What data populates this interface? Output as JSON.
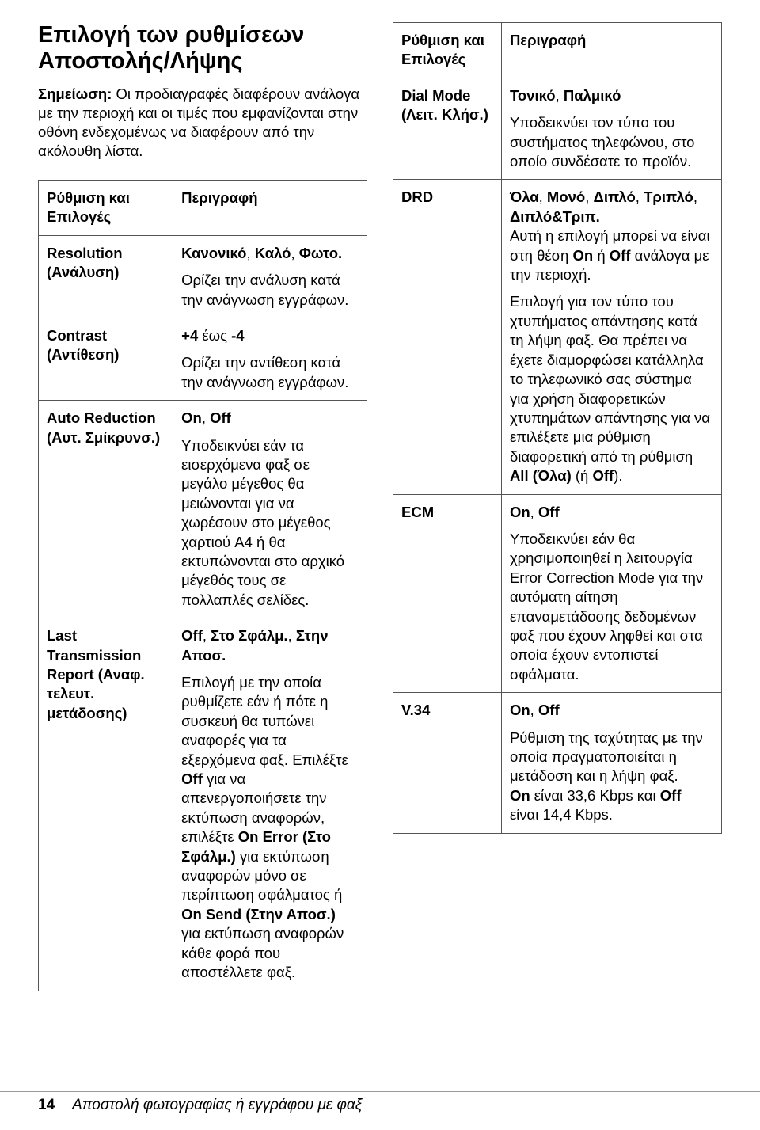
{
  "header": {
    "title": "Επιλογή των ρυθμίσεων Αποστολής/Λήψης",
    "note_label": "Σημείωση:",
    "note_text": "Οι προδιαγραφές διαφέρουν ανάλογα με την περιοχή και οι τιμές που εμφανίζονται στην οθόνη ενδεχομένως να διαφέρουν από την ακόλουθη λίστα."
  },
  "left_table": {
    "col1": "Ρύθμιση και Επιλογές",
    "col2": "Περιγραφή",
    "rows": [
      {
        "name": "Resolution (Ανάλυση)",
        "desc_html": "<span class='opts'>Κανονικό</span>, <span class='opts'>Καλό</span>, <span class='opts'>Φωτο.</span><span class='desc'>Ορίζει την ανάλυση κατά την ανάγνωση εγγράφων.</span>"
      },
      {
        "name": "Contrast (Αντίθεση)",
        "desc_html": "<span class='opts'>+4</span> έως <span class='opts'>-4</span><span class='desc'>Ορίζει την αντίθεση κατά την ανάγνωση εγγράφων.</span>"
      },
      {
        "name": "Auto Reduction (Αυτ. Σμίκρυνσ.)",
        "desc_html": "<span class='opts'>On</span>, <span class='opts'>Off</span><span class='desc'>Υποδεικνύει εάν τα εισερχόμενα φαξ σε μεγάλο μέγεθος θα μειώνονται για να χωρέσουν στο μέγεθος χαρτιού A4 ή θα εκτυπώνονται στο αρχικό μέγεθός τους σε πολλαπλές σελίδες.</span>"
      },
      {
        "name": "Last Transmission Report (Αναφ. τελευτ. μετάδοσης)",
        "desc_html": "<span class='opts'>Off</span>, <span class='opts'>Στο Σφάλμ.</span>, <span class='opts'>Στην Αποσ.</span><span class='desc'>Επιλογή με την οποία ρυθμίζετε εάν ή πότε η συσκευή θα τυπώνει αναφορές για τα εξερχόμενα φαξ. Επιλέξτε <b>Off</b> για να απενεργοποιήσετε την εκτύπωση αναφορών, επιλέξτε <b>On Error (Στο Σφάλμ.)</b> για εκτύπωση αναφορών μόνο σε περίπτωση σφάλματος ή <b>On Send (Στην Αποσ.)</b> για εκτύπωση αναφορών κάθε φορά που αποστέλλετε φαξ.</span>"
      }
    ]
  },
  "right_table": {
    "col1": "Ρύθμιση και Επιλογές",
    "col2": "Περιγραφή",
    "rows": [
      {
        "name": "Dial Mode (Λειτ. Κλήσ.)",
        "desc_html": "<span class='opts'>Τονικό</span>, <span class='opts'>Παλμικό</span><span class='desc'>Υποδεικνύει τον τύπο του συστήματος τηλεφώνου, στο οποίο συνδέσατε το προϊόν.</span>"
      },
      {
        "name": "DRD",
        "desc_html": "<span class='opts'>Όλα</span>, <span class='opts'>Μονό</span>, <span class='opts'>Διπλό</span>, <span class='opts'>Τριπλό</span>, <span class='opts'>Διπλό&Τριπ.</span><br>Αυτή η επιλογή μπορεί να είναι στη θέση <b>On</b> ή <b>Off</b> ανάλογα με την περιοχή.<span class='desc'>Επιλογή για τον τύπο του χτυπήματος απάντησης κατά τη λήψη φαξ. Θα πρέπει να έχετε διαμορφώσει κατάλληλα το τηλεφωνικό σας σύστημα για χρήση διαφορετικών χτυπημάτων απάντησης για να επιλέξετε μια ρύθμιση διαφορετική από τη ρύθμιση <b>All (Όλα)</b> (ή <b>Off</b>).</span>"
      },
      {
        "name": "ECM",
        "desc_html": "<span class='opts'>On</span>, <span class='opts'>Off</span><span class='desc'>Υποδεικνύει εάν θα χρησιμοποιηθεί η λειτουργία Error Correction Mode για την αυτόματη αίτηση επαναμετάδοσης δεδομένων φαξ που έχουν ληφθεί και στα οποία έχουν εντοπιστεί σφάλματα.</span>"
      },
      {
        "name": "V.34",
        "desc_html": "<span class='opts'>On</span>, <span class='opts'>Off</span><span class='desc'>Ρύθμιση της ταχύτητας με την οποία πραγματοποιείται η μετάδοση και η λήψη φαξ.<br><b>On</b> είναι 33,6 Kbps και <b>Off</b> είναι 14,4 Kbps.</span>"
      }
    ]
  },
  "footer": {
    "page": "14",
    "section": "Αποστολή φωτογραφίας ή εγγράφου με φαξ"
  }
}
